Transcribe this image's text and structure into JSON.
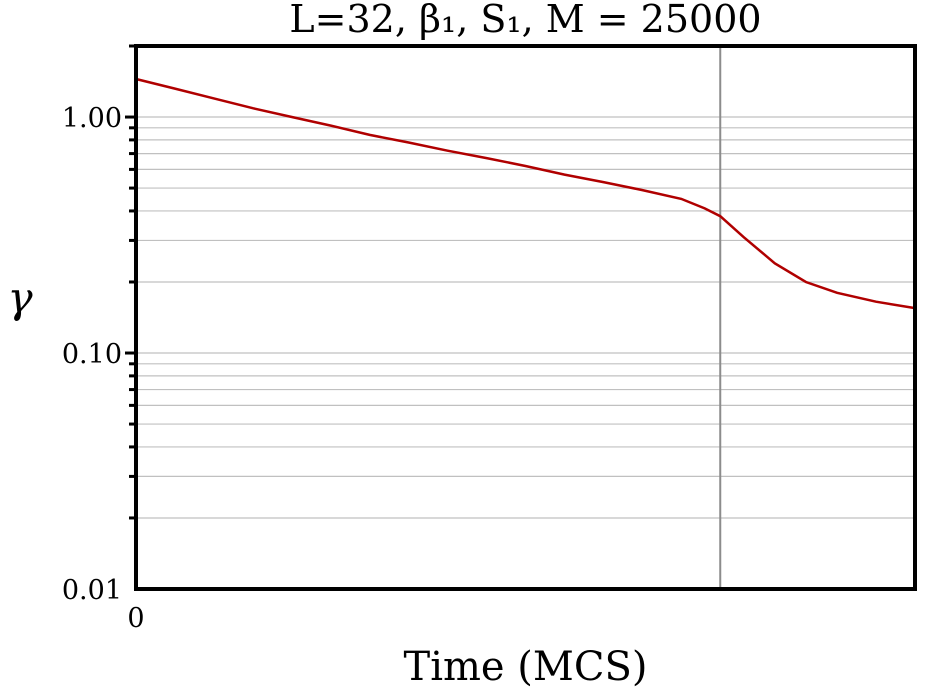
{
  "chart_data": {
    "type": "line",
    "title": "L=32, β₁, S₁, M = 25000",
    "xlabel": "Time (MCS)",
    "ylabel": "γ",
    "y_scale": "log",
    "ylim": [
      0.01,
      2.0
    ],
    "xlim": [
      0,
      1
    ],
    "x_tick_labels": [
      "0"
    ],
    "y_tick_labels": [
      "0.01",
      "0.10",
      "1.00"
    ],
    "y_ticks": [
      0.01,
      0.1,
      1.0
    ],
    "grid": "horizontal minor (log)",
    "vertical_marker_x": 0.75,
    "series": [
      {
        "color": "#b00000",
        "x": [
          0.0,
          0.05,
          0.1,
          0.15,
          0.2,
          0.25,
          0.3,
          0.35,
          0.4,
          0.45,
          0.5,
          0.55,
          0.6,
          0.65,
          0.7,
          0.73,
          0.75,
          0.78,
          0.82,
          0.86,
          0.9,
          0.95,
          1.0
        ],
        "values": [
          1.45,
          1.32,
          1.2,
          1.09,
          1.0,
          0.92,
          0.84,
          0.78,
          0.72,
          0.67,
          0.62,
          0.57,
          0.53,
          0.49,
          0.45,
          0.41,
          0.38,
          0.31,
          0.24,
          0.2,
          0.18,
          0.165,
          0.155
        ]
      }
    ],
    "colors": {
      "axes": "#000000",
      "grid": "#c0c0c0",
      "marker_line": "#8c8c8c",
      "series": "#b00000"
    }
  }
}
